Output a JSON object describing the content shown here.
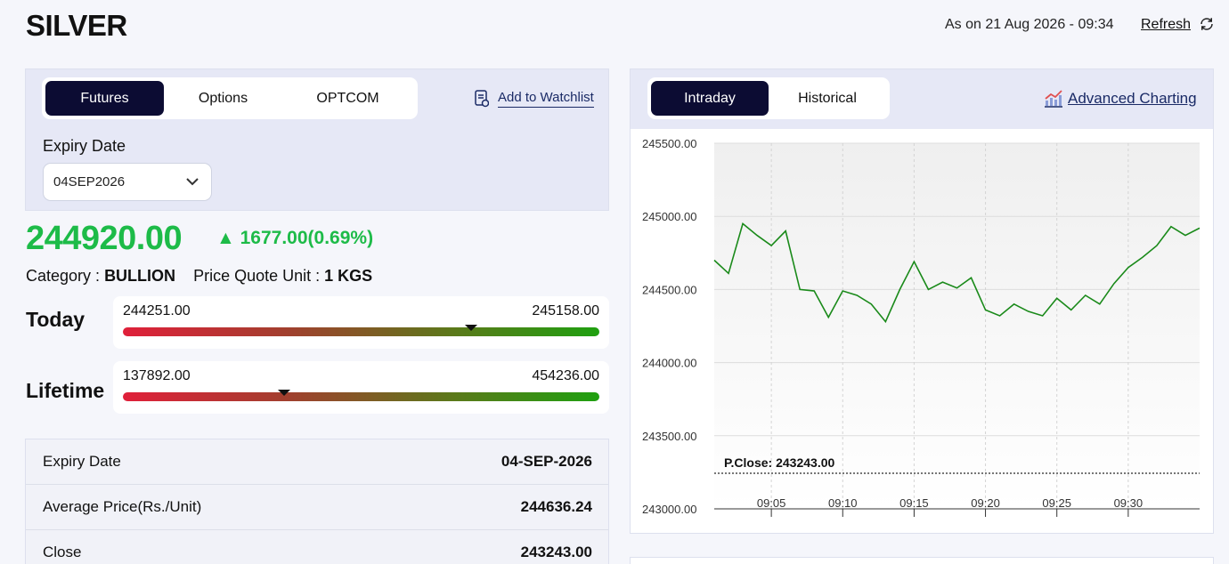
{
  "header": {
    "title": "SILVER",
    "as_of": "As on 21 Aug 2026 - 09:34",
    "refresh_label": "Refresh"
  },
  "contract_tabs": [
    "Futures",
    "Options",
    "OPTCOM"
  ],
  "active_contract_tab": "Futures",
  "watchlist_label": "Add to Watchlist",
  "expiry": {
    "label": "Expiry Date",
    "selected": "04SEP2026"
  },
  "quote": {
    "price": "244920.00",
    "change": "▲ 1677.00(0.69%)",
    "category_label": "Category :",
    "category": "BULLION",
    "unit_label": "Price Quote Unit :",
    "unit": "1 KGS",
    "color_up": "#1dbb48"
  },
  "today": {
    "label": "Today",
    "low": "244251.00",
    "high": "245158.00",
    "position": 0.73
  },
  "lifetime": {
    "label": "Lifetime",
    "low": "137892.00",
    "high": "454236.00",
    "position": 0.339
  },
  "details": [
    {
      "label": "Expiry Date",
      "value": "04-SEP-2026"
    },
    {
      "label": "Average Price(Rs./Unit)",
      "value": "244636.24"
    },
    {
      "label": "Close",
      "value": "243243.00"
    }
  ],
  "chart_tabs": [
    "Intraday",
    "Historical"
  ],
  "active_chart_tab": "Intraday",
  "advanced_charting_label": "Advanced Charting",
  "chart_data": {
    "type": "line",
    "y_ticks": [
      "245500.00",
      "245000.00",
      "244500.00",
      "244000.00",
      "243500.00",
      "243000.00"
    ],
    "ylim": [
      243000,
      245500
    ],
    "x_ticks": [
      "09:05",
      "09:10",
      "09:15",
      "09:20",
      "09:25",
      "09:30"
    ],
    "x_tick_minutes": [
      5,
      10,
      15,
      20,
      25,
      30
    ],
    "xlim": [
      1,
      35
    ],
    "prev_close": 243243,
    "prev_close_label": "P.Close: 243243.00",
    "series": [
      {
        "color": "#1a8a1a",
        "x": [
          1,
          2,
          3,
          4,
          5,
          6,
          7,
          8,
          9,
          10,
          11,
          12,
          13,
          14,
          15,
          16,
          17,
          18,
          19,
          20,
          21,
          22,
          23,
          24,
          25,
          26,
          27,
          28,
          29,
          30,
          31,
          32,
          33,
          34,
          35
        ],
        "values": [
          244700,
          244610,
          244950,
          244870,
          244800,
          244900,
          244500,
          244490,
          244310,
          244490,
          244460,
          244400,
          244280,
          244500,
          244690,
          244500,
          244550,
          244510,
          244580,
          244360,
          244320,
          244400,
          244350,
          244320,
          244440,
          244360,
          244460,
          244400,
          244540,
          244650,
          244720,
          244800,
          244930,
          244870,
          244920
        ]
      }
    ]
  }
}
